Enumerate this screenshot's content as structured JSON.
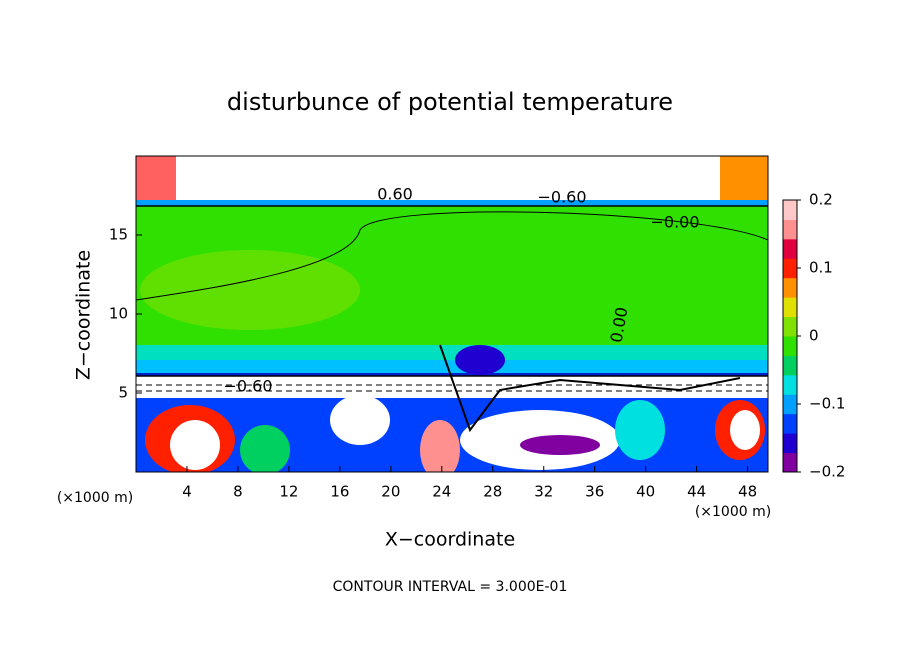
{
  "chart_data": {
    "type": "contour",
    "title": "disturbunce of potential temperature",
    "x_label": "X−coordinate",
    "y_label": "Z−coordinate",
    "x_unit_left": "(×1000 m)",
    "x_unit_right": "(×1000 m)",
    "footnote": "CONTOUR INTERVAL = 3.000E-01",
    "xlim": [
      0,
      49.6
    ],
    "xticks": [
      4,
      8,
      12,
      16,
      20,
      24,
      28,
      32,
      36,
      40,
      44,
      48
    ],
    "ylim": [
      0,
      20
    ],
    "yticks": [
      5,
      10,
      15
    ],
    "clim": [
      -0.2,
      0.2
    ],
    "cticks": [
      0.2,
      0.1,
      0,
      {
        "value": -0.1,
        "label": "−0.1"
      },
      {
        "value": -0.2,
        "label": "−0.2"
      }
    ],
    "colormap": [
      "#8000a0",
      "#2000d0",
      "#0040ff",
      "#00a0ff",
      "#00e0e0",
      "#00d060",
      "#30e000",
      "#80e000",
      "#e0e000",
      "#ff9000",
      "#ff2000",
      "#e00040",
      "#ff9090",
      "#ffc8c8"
    ],
    "annotations": [
      "0.60",
      "−0.60",
      "−0.00",
      "0.00",
      "−0.60"
    ]
  }
}
